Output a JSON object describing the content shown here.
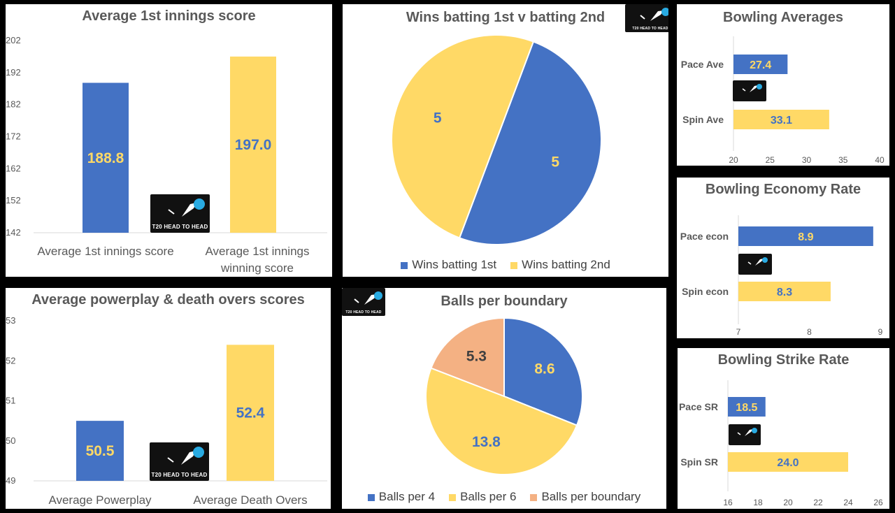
{
  "colors": {
    "blue": "#4472C4",
    "yellow": "#FFD966",
    "peach": "#F4B183",
    "axis": "#595959",
    "grid": "#D9D9D9"
  },
  "watermark": {
    "text": "T20 HEAD TO HEAD",
    "icon": "cricket-ball-logo"
  },
  "chart_data": [
    {
      "id": "first_innings",
      "type": "bar",
      "title": "Average 1st innings score",
      "categories": [
        "Average 1st innings score",
        "Average 1st innings winning score"
      ],
      "values": [
        188.8,
        197.0
      ],
      "value_labels": [
        "188.8",
        "197.0"
      ],
      "colors": [
        "#4472C4",
        "#FFD966"
      ],
      "ylim": [
        142,
        202
      ],
      "yticks": [
        "142",
        "152",
        "162",
        "172",
        "182",
        "192",
        "202"
      ],
      "grid": false
    },
    {
      "id": "wins",
      "type": "pie",
      "title": "Wins batting 1st v batting 2nd",
      "labels": [
        "Wins batting 1st",
        "Wins batting 2nd"
      ],
      "values": [
        5,
        5
      ],
      "value_labels": [
        "5",
        "5"
      ],
      "colors": [
        "#4472C4",
        "#FFD966"
      ],
      "legend": "bottom"
    },
    {
      "id": "bowling_avg",
      "type": "bar",
      "orientation": "horizontal",
      "title": "Bowling Averages",
      "categories": [
        "Pace Ave",
        "Spin Ave"
      ],
      "values": [
        27.4,
        33.1
      ],
      "value_labels": [
        "27.4",
        "33.1"
      ],
      "colors": [
        "#4472C4",
        "#FFD966"
      ],
      "xlim": [
        20,
        40
      ],
      "xticks": [
        "20",
        "25",
        "30",
        "35",
        "40"
      ]
    },
    {
      "id": "bowling_econ",
      "type": "bar",
      "orientation": "horizontal",
      "title": "Bowling Economy Rate",
      "categories": [
        "Pace econ",
        "Spin econ"
      ],
      "values": [
        8.9,
        8.3
      ],
      "value_labels": [
        "8.9",
        "8.3"
      ],
      "colors": [
        "#4472C4",
        "#FFD966"
      ],
      "xlim": [
        7,
        9
      ],
      "xticks": [
        "7",
        "8",
        "9"
      ]
    },
    {
      "id": "powerplay",
      "type": "bar",
      "title": "Average powerplay & death overs scores",
      "categories": [
        "Average Powerplay",
        "Average Death Overs"
      ],
      "values": [
        50.5,
        52.4
      ],
      "value_labels": [
        "50.5",
        "52.4"
      ],
      "colors": [
        "#4472C4",
        "#FFD966"
      ],
      "ylim": [
        49,
        53
      ],
      "yticks": [
        "49",
        "50",
        "51",
        "52",
        "53"
      ]
    },
    {
      "id": "boundary",
      "type": "pie",
      "title": "Balls per boundary",
      "labels": [
        "Balls per 4",
        "Balls per 6",
        "Balls per boundary"
      ],
      "values": [
        8.6,
        13.8,
        5.3
      ],
      "value_labels": [
        "8.6",
        "13.8",
        "5.3"
      ],
      "colors": [
        "#4472C4",
        "#FFD966",
        "#F4B183"
      ],
      "legend": "bottom"
    },
    {
      "id": "strike_rate",
      "type": "bar",
      "orientation": "horizontal",
      "title": "Bowling Strike Rate",
      "categories": [
        "Pace SR",
        "Spin SR"
      ],
      "values": [
        18.5,
        24.0
      ],
      "value_labels": [
        "18.5",
        "24.0"
      ],
      "colors": [
        "#4472C4",
        "#FFD966"
      ],
      "xlim": [
        16,
        26
      ],
      "xticks": [
        "16",
        "18",
        "20",
        "22",
        "24",
        "26"
      ]
    }
  ]
}
